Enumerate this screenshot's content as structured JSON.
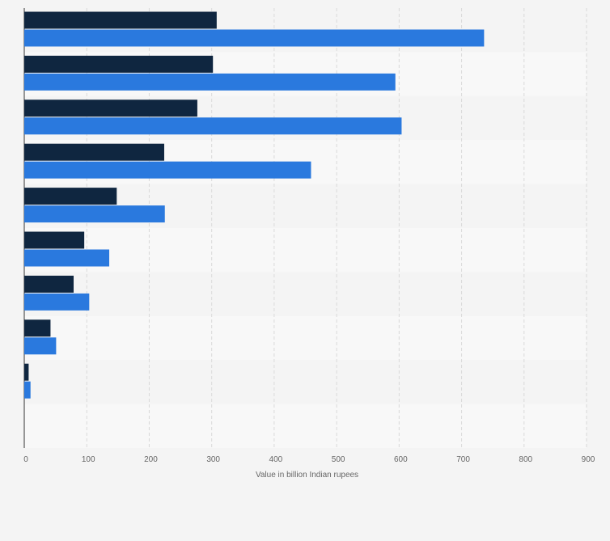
{
  "chart_data": {
    "type": "bar",
    "orientation": "horizontal",
    "categories": [
      "",
      "",
      "",
      "",
      "",
      "",
      "",
      "",
      "",
      ""
    ],
    "series": [
      {
        "color": "#0f2640",
        "values": [
          308,
          302,
          277,
          224,
          148,
          96,
          79,
          42,
          7,
          0
        ]
      },
      {
        "color": "#2a79de",
        "values": [
          736,
          594,
          604,
          459,
          225,
          136,
          104,
          51,
          10,
          0
        ]
      }
    ],
    "xlim": [
      0,
      900
    ],
    "xticks": [
      0,
      100,
      200,
      300,
      400,
      500,
      600,
      700,
      800,
      900
    ],
    "xlabel": "Value in billion Indian rupees",
    "ylabel": "",
    "title": "",
    "grid": true,
    "legend": "none"
  }
}
